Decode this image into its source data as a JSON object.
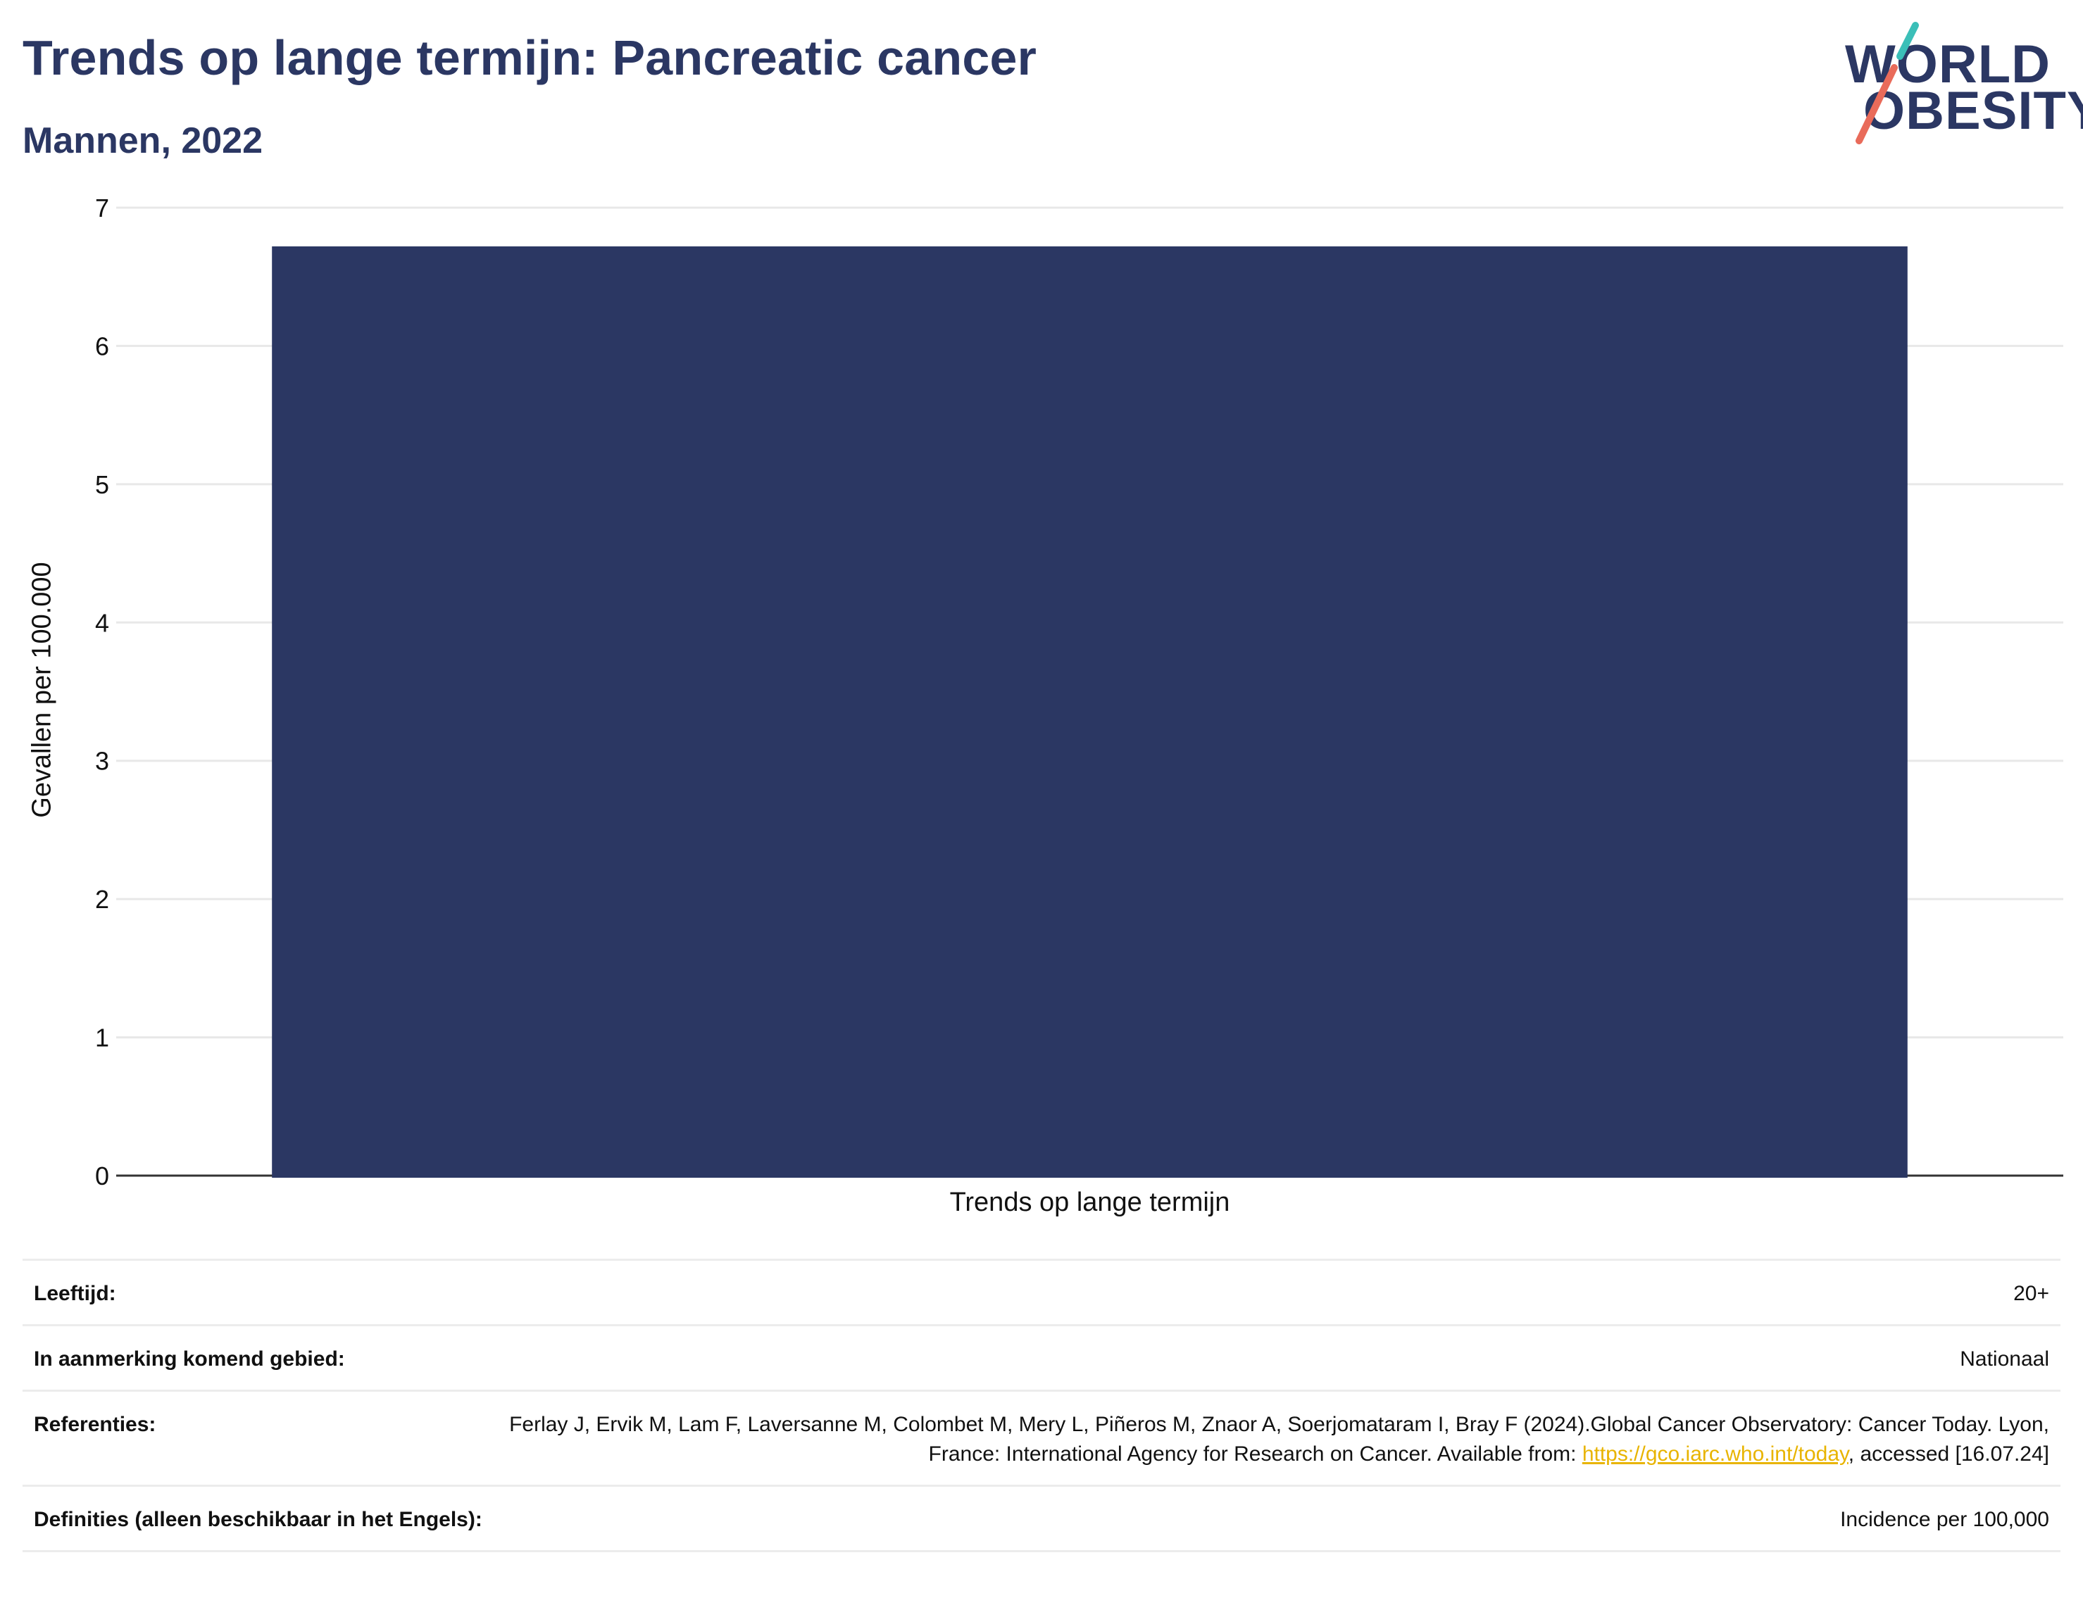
{
  "header": {
    "title": "Trends op lange termijn: Pancreatic cancer",
    "subtitle": "Mannen, 2022"
  },
  "logo": {
    "line1": "WORLD",
    "line2": "OBESITY",
    "colors": {
      "text": "#2b3763",
      "slash_top": "#3bbfb8",
      "slash_bottom": "#e96b5a"
    }
  },
  "chart_data": {
    "type": "bar",
    "categories": [
      "Trends op lange termijn"
    ],
    "values": [
      6.72
    ],
    "ylabel": "Gevallen per 100.000",
    "xlabel": "",
    "ylim": [
      0,
      7
    ],
    "yticks": [
      "0",
      "1",
      "2",
      "3",
      "4",
      "5",
      "6",
      "7"
    ],
    "grid": true,
    "bar_color": "#2b3763"
  },
  "info": {
    "rows": [
      {
        "label": "Leeftijd:",
        "value": "20+"
      },
      {
        "label": "In aanmerking komend gebied:",
        "value": "Nationaal"
      },
      {
        "label": "Referenties:",
        "value_before": "Ferlay J, Ervik M, Lam F, Laversanne M, Colombet M, Mery L, Piñeros M, Znaor A, Soerjomataram I, Bray F (2024).Global Cancer Observatory: Cancer Today. Lyon, France: International Agency for Research on Cancer. Available from: ",
        "link": "https://gco.iarc.who.int/today",
        "value_after": ", accessed [16.07.24]"
      },
      {
        "label": "Definities (alleen beschikbaar in het Engels):",
        "value": "Incidence per 100,000"
      }
    ]
  }
}
